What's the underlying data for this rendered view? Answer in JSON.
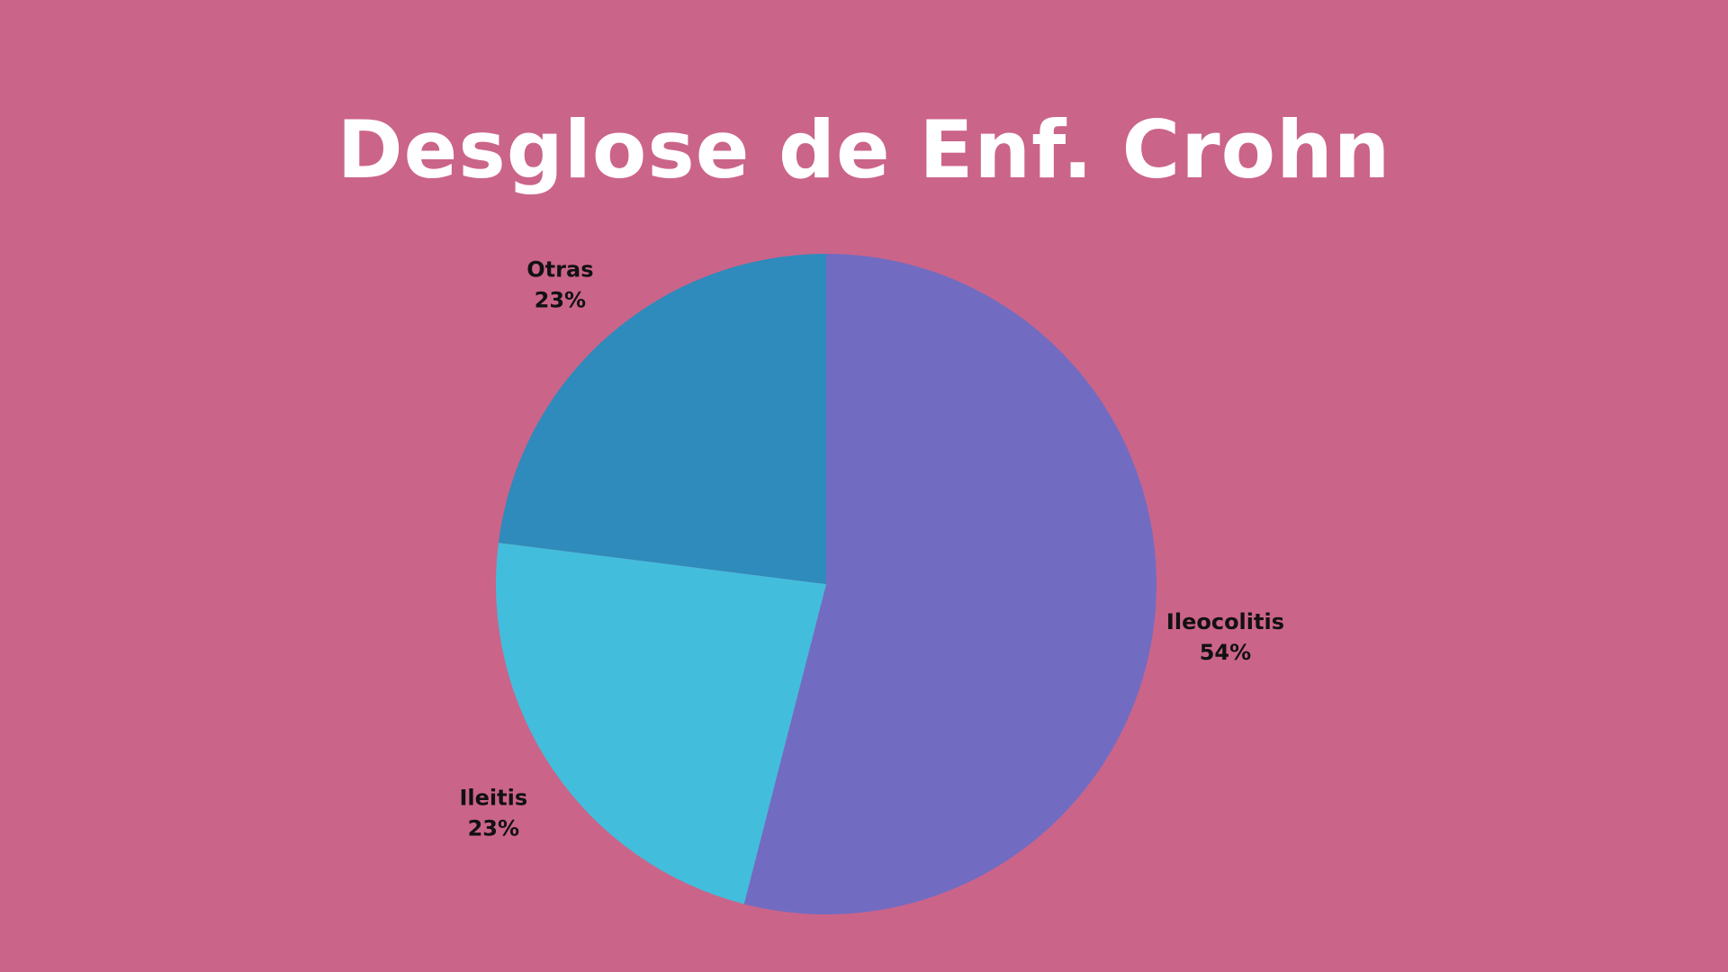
{
  "slide": {
    "background": "#cb6489"
  },
  "chart_data": {
    "type": "pie",
    "title": "Desglose de Enf. Crohn",
    "slices": [
      {
        "label": "Ileocolitis",
        "value": 54,
        "value_label": "54%",
        "color": "#716cc2"
      },
      {
        "label": "Ileitis",
        "value": 23,
        "value_label": "23%",
        "color": "#43bddc"
      },
      {
        "label": "Otras",
        "value": 23,
        "value_label": "23%",
        "color": "#2e8bbb"
      }
    ],
    "start_angle_deg": 0,
    "direction": "clockwise",
    "legend": "none",
    "labels_position": "outside"
  }
}
